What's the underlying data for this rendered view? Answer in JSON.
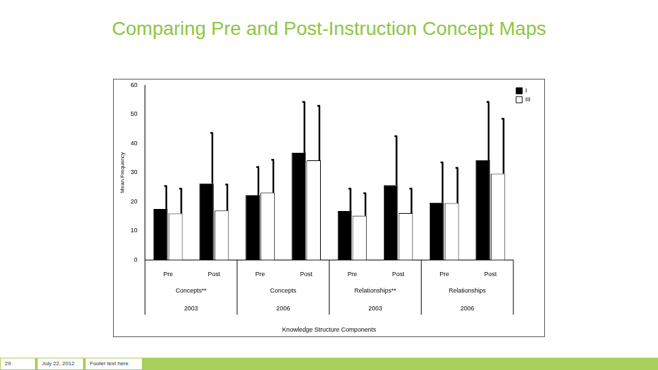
{
  "chart_data": {
    "type": "bar",
    "title": "Comparing Pre and Post-Instruction Concept Maps",
    "categories": [
      "Pre",
      "Post",
      "Pre",
      "Post",
      "Pre",
      "Post",
      "Pre",
      "Post"
    ],
    "groups": [
      {
        "label": "Concepts**",
        "year": "2003"
      },
      {
        "label": "Concepts",
        "year": "2006"
      },
      {
        "label": "Relationships**",
        "year": "2003"
      },
      {
        "label": "Relationships",
        "year": "2006"
      }
    ],
    "x_label": "Knowledge Structure Components",
    "y_label": "Mean Frequency",
    "series": [
      {
        "name": "I",
        "color": "#000000",
        "values": [
          17.5,
          26.3,
          22.2,
          36.8,
          16.8,
          25.7,
          19.7,
          34.2
        ],
        "errors": [
          7.9,
          17.3,
          9.7,
          17.5,
          7.7,
          16.8,
          13.8,
          20.1
        ]
      },
      {
        "name": "III",
        "color": "#ffffff",
        "values": [
          16.0,
          17.0,
          23.1,
          34.2,
          15.2,
          16.1,
          19.5,
          29.6
        ],
        "errors": [
          8.5,
          8.9,
          11.3,
          18.7,
          7.7,
          8.4,
          12.1,
          18.9
        ]
      }
    ],
    "ylim": [
      0,
      60
    ],
    "yticks": [
      0,
      10,
      20,
      30,
      40,
      50,
      60
    ],
    "grid": false,
    "legend": "upper right"
  },
  "footer": {
    "page": "29",
    "date": "July 22, 2012",
    "text": "Footer text here"
  }
}
